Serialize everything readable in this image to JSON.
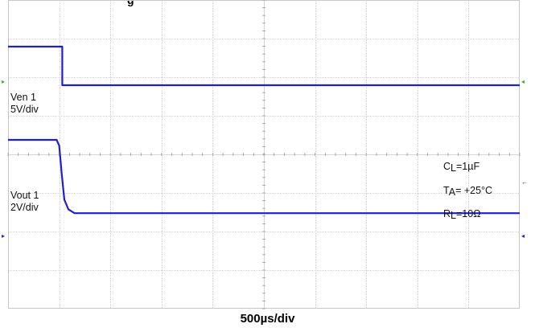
{
  "title_fragment": "g",
  "colors": {
    "trace": "#1f1fd0",
    "grid": "#c8c8c8",
    "marker": "#2bb52b"
  },
  "chart_data": {
    "type": "line",
    "title": "",
    "xlabel": "500µs/div",
    "ylabel": "",
    "grid": true,
    "series": [
      {
        "name": "Ven 1",
        "channel_label": "Ven 1",
        "scale_label": "5V/div",
        "points": [
          [
            0,
            0.0
          ],
          [
            1.06,
            0.0
          ],
          [
            1.06,
            -1.0
          ],
          [
            10,
            -1.0
          ]
        ],
        "points_units": "[time in divisions, level in divisions]"
      },
      {
        "name": "Vout 1",
        "channel_label": "Vout 1",
        "scale_label": "2V/div",
        "points": [
          [
            0,
            0.0
          ],
          [
            0.95,
            0.0
          ],
          [
            1.0,
            -0.15
          ],
          [
            1.05,
            -0.9
          ],
          [
            1.1,
            -1.55
          ],
          [
            1.18,
            -1.8
          ],
          [
            1.3,
            -1.9
          ],
          [
            10,
            -1.9
          ]
        ],
        "points_units": "[time in divisions, level in divisions]"
      }
    ]
  },
  "conditions": [
    {
      "main": "C",
      "sub": "L",
      "rest": "=1µF"
    },
    {
      "main": "T",
      "sub": "A",
      "rest": "= +25°C"
    },
    {
      "main": "R",
      "sub": "L",
      "rest": "=10Ω"
    }
  ]
}
